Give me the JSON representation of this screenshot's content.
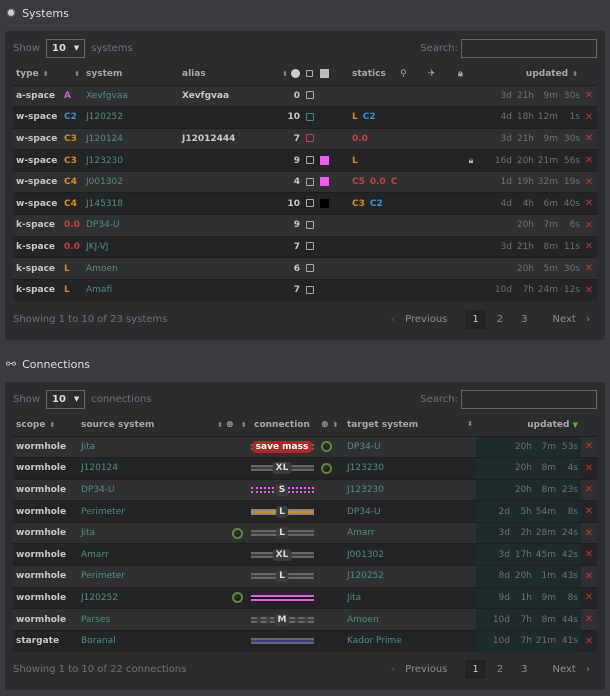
{
  "systems": {
    "title": "Systems",
    "icon": "gear-icon",
    "show_label": "Show",
    "page_size": "10",
    "unit": "systems",
    "search_label": "Search:",
    "search_value": "",
    "headers": {
      "type": "type",
      "system": "system",
      "alias": "alias",
      "statics": "statics",
      "updated": "updated"
    },
    "rows": [
      {
        "type": "a-space",
        "class": "A",
        "class_color": "#d05cd0",
        "system": "Xevfgvaa",
        "alias": "Xevfgvaa",
        "count": "0",
        "box": "#aaaaaa",
        "tag": "",
        "statics": [],
        "locked": false,
        "updated": [
          "3d",
          "21h",
          "9m",
          "30s"
        ]
      },
      {
        "type": "w-space",
        "class": "C2",
        "class_color": "#3d8fd6",
        "system": "J120252",
        "alias": "",
        "count": "10",
        "box": "#3a8a86",
        "tag": "",
        "statics": [
          {
            "t": "L",
            "c": "#e08a12"
          },
          {
            "t": "C2",
            "c": "#3d8fd6"
          }
        ],
        "locked": false,
        "updated": [
          "4d",
          "18h",
          "12m",
          "1s"
        ]
      },
      {
        "type": "w-space",
        "class": "C3",
        "class_color": "#e08a12",
        "system": "J120124",
        "alias": "J12012444",
        "count": "7",
        "box": "#c8413d",
        "tag": "",
        "statics": [
          {
            "t": "0.0",
            "c": "#c8413d"
          }
        ],
        "locked": false,
        "updated": [
          "3d",
          "21h",
          "9m",
          "30s"
        ]
      },
      {
        "type": "w-space",
        "class": "C3",
        "class_color": "#e08a12",
        "system": "J123230",
        "alias": "",
        "count": "9",
        "box": "#aaaaaa",
        "tag": "#e85ee8",
        "statics": [
          {
            "t": "L",
            "c": "#e08a12"
          }
        ],
        "locked": true,
        "updated": [
          "16d",
          "20h",
          "21m",
          "56s"
        ]
      },
      {
        "type": "w-space",
        "class": "C4",
        "class_color": "#e08a12",
        "system": "J001302",
        "alias": "",
        "count": "4",
        "box": "#aaaaaa",
        "tag": "#e85ee8",
        "statics": [
          {
            "t": "C5",
            "c": "#c8413d"
          },
          {
            "t": "0.0",
            "c": "#c8413d"
          },
          {
            "t": "C6",
            "c": "#c8413d"
          }
        ],
        "locked": false,
        "updated": [
          "1d",
          "19h",
          "32m",
          "19s"
        ]
      },
      {
        "type": "w-space",
        "class": "C4",
        "class_color": "#e08a12",
        "system": "J145318",
        "alias": "",
        "count": "10",
        "box": "#aaaaaa",
        "tag": "#000000",
        "statics": [
          {
            "t": "C3",
            "c": "#e08a12"
          },
          {
            "t": "C2",
            "c": "#3d8fd6"
          }
        ],
        "locked": false,
        "updated": [
          "4d",
          "4h",
          "6m",
          "40s"
        ]
      },
      {
        "type": "k-space",
        "class": "0.0",
        "class_color": "#c8413d",
        "system": "DP34-U",
        "alias": "",
        "count": "9",
        "box": "#aaaaaa",
        "tag": "",
        "statics": [],
        "locked": false,
        "updated": [
          "",
          "20h",
          "7m",
          "6s"
        ]
      },
      {
        "type": "k-space",
        "class": "0.0",
        "class_color": "#c8413d",
        "system": "JKJ-VJ",
        "alias": "",
        "count": "7",
        "box": "#aaaaaa",
        "tag": "",
        "statics": [],
        "locked": false,
        "updated": [
          "3d",
          "21h",
          "8m",
          "11s"
        ]
      },
      {
        "type": "k-space",
        "class": "L",
        "class_color": "#e08a12",
        "system": "Amoen",
        "alias": "",
        "count": "6",
        "box": "#aaaaaa",
        "tag": "",
        "statics": [],
        "locked": false,
        "updated": [
          "",
          "20h",
          "5m",
          "30s"
        ]
      },
      {
        "type": "k-space",
        "class": "L",
        "class_color": "#e08a12",
        "system": "Amafi",
        "alias": "",
        "count": "7",
        "box": "#aaaaaa",
        "tag": "",
        "statics": [],
        "locked": false,
        "updated": [
          "10d",
          "7h",
          "24m",
          "12s"
        ]
      }
    ],
    "footer": "Showing 1 to 10 of 23 systems",
    "pager": {
      "prev": "Previous",
      "pages": [
        "1",
        "2",
        "3"
      ],
      "current": "1",
      "next": "Next"
    }
  },
  "connections": {
    "title": "Connections",
    "icon": "route-icon",
    "show_label": "Show",
    "page_size": "10",
    "unit": "connections",
    "search_label": "Search:",
    "search_value": "",
    "headers": {
      "scope": "scope",
      "source": "source system",
      "connection": "connection",
      "target": "target system",
      "updated": "updated"
    },
    "rows": [
      {
        "scope": "wormhole",
        "source": "Jita",
        "src_eol": false,
        "style": "gray",
        "label": "save mass",
        "label_red": true,
        "tgt_eol": true,
        "target": "DP34-U",
        "updated": [
          "",
          "20h",
          "7m",
          "53s"
        ]
      },
      {
        "scope": "wormhole",
        "source": "J120124",
        "src_eol": false,
        "style": "gray",
        "label": "XL",
        "tgt_eol": true,
        "target": "J123230",
        "updated": [
          "",
          "20h",
          "8m",
          "4s"
        ]
      },
      {
        "scope": "wormhole",
        "source": "DP34-U",
        "src_eol": false,
        "style": "pink-dotted",
        "label": "S",
        "tgt_eol": false,
        "target": "J123230",
        "updated": [
          "",
          "20h",
          "8m",
          "23s"
        ]
      },
      {
        "scope": "wormhole",
        "source": "Perimeter",
        "src_eol": false,
        "style": "orange",
        "label": "L",
        "tgt_eol": false,
        "target": "DP34-U",
        "updated": [
          "2d",
          "5h",
          "54m",
          "8s"
        ]
      },
      {
        "scope": "wormhole",
        "source": "Jita",
        "src_eol": true,
        "style": "gray",
        "label": "L",
        "tgt_eol": false,
        "target": "Amarr",
        "updated": [
          "3d",
          "2h",
          "28m",
          "24s"
        ]
      },
      {
        "scope": "wormhole",
        "source": "Amarr",
        "src_eol": false,
        "style": "gray",
        "label": "XL",
        "tgt_eol": false,
        "target": "J001302",
        "updated": [
          "3d",
          "17h",
          "45m",
          "42s"
        ]
      },
      {
        "scope": "wormhole",
        "source": "Perimeter",
        "src_eol": false,
        "style": "gray",
        "label": "L",
        "tgt_eol": false,
        "target": "J120252",
        "updated": [
          "8d",
          "20h",
          "1m",
          "43s"
        ]
      },
      {
        "scope": "wormhole",
        "source": "J120252",
        "src_eol": true,
        "style": "pink",
        "label": "",
        "tgt_eol": false,
        "target": "Jita",
        "updated": [
          "9d",
          "1h",
          "9m",
          "8s"
        ]
      },
      {
        "scope": "wormhole",
        "source": "Parses",
        "src_eol": false,
        "style": "gray-dashed",
        "label": "M",
        "tgt_eol": false,
        "target": "Amoen",
        "updated": [
          "10d",
          "7h",
          "8m",
          "44s"
        ]
      },
      {
        "scope": "stargate",
        "source": "Boranal",
        "src_eol": false,
        "style": "blue",
        "label": "",
        "tgt_eol": false,
        "target": "Kador Prime",
        "updated": [
          "10d",
          "7h",
          "21m",
          "41s"
        ]
      }
    ],
    "footer": "Showing 1 to 10 of 22 connections",
    "pager": {
      "prev": "Previous",
      "pages": [
        "1",
        "2",
        "3"
      ],
      "current": "1",
      "next": "Next"
    }
  }
}
